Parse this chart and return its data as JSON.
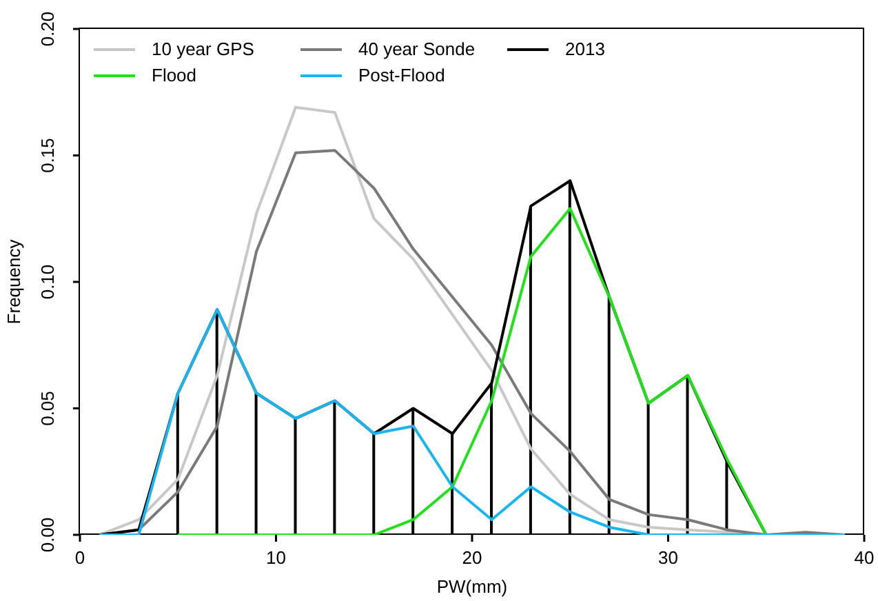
{
  "chart_data": {
    "type": "line",
    "xlabel": "PW(mm)",
    "ylabel": "Frequency",
    "x": [
      1,
      3,
      5,
      7,
      9,
      11,
      13,
      15,
      17,
      19,
      21,
      23,
      25,
      27,
      29,
      31,
      33,
      35,
      37,
      39
    ],
    "xlim": [
      0,
      40
    ],
    "xticks": [
      0,
      10,
      20,
      30,
      40
    ],
    "ylim": [
      0,
      0.2
    ],
    "yticks": [
      {
        "value": 0,
        "label": "0.00"
      },
      {
        "value": 0.05,
        "label": "0.05"
      },
      {
        "value": 0.1,
        "label": "0.10"
      },
      {
        "value": 0.15,
        "label": "0.15"
      },
      {
        "value": 0.2,
        "label": "0.20"
      }
    ],
    "legend": "top",
    "grid": false,
    "marker": "none",
    "line_style": "solid",
    "series": [
      {
        "type": "bar",
        "color": "#000000",
        "values": [
          0,
          null,
          0.056,
          0.089,
          0.056,
          0.046,
          0.053,
          0.04,
          0.05,
          0.04,
          0.06,
          0.13,
          0.14,
          0.094,
          0.052,
          0.063,
          0.029,
          0,
          0,
          0
        ]
      },
      {
        "name": "10 year GPS",
        "color": "#c8c8c8",
        "values": [
          0,
          0.006,
          0.022,
          0.063,
          0.127,
          0.169,
          0.167,
          0.125,
          0.109,
          0.087,
          0.065,
          0.034,
          0.016,
          0.006,
          0.003,
          0.002,
          0.001,
          0,
          0,
          0
        ]
      },
      {
        "name": "40 year Sonde",
        "color": "#7a7a7a",
        "values": [
          0,
          0.002,
          0.017,
          0.043,
          0.112,
          0.151,
          0.152,
          0.137,
          0.113,
          0.094,
          0.075,
          0.048,
          0.033,
          0.014,
          0.008,
          0.006,
          0.002,
          0,
          0.001,
          0
        ]
      },
      {
        "name": "2013",
        "color": "#000000",
        "values": [
          0,
          0.002,
          0.056,
          0.089,
          0.056,
          0.046,
          0.053,
          0.04,
          0.05,
          0.04,
          0.06,
          0.13,
          0.14,
          0.094,
          0.052,
          0.063,
          0.029,
          0,
          0,
          0
        ]
      },
      {
        "name": "Flood",
        "color": "#22e01a",
        "values": [
          null,
          null,
          0,
          0,
          0,
          0,
          0,
          0,
          0.006,
          0.019,
          0.053,
          0.11,
          0.129,
          0.094,
          0.052,
          0.063,
          0.03,
          0,
          0,
          0
        ]
      },
      {
        "name": "Post-Flood",
        "color": "#1ab4ee",
        "values": [
          0,
          0,
          0.056,
          0.089,
          0.056,
          0.046,
          0.053,
          0.04,
          0.043,
          0.019,
          0.006,
          0.019,
          0.009,
          0.003,
          0,
          0,
          0,
          0,
          0,
          0
        ]
      }
    ]
  }
}
